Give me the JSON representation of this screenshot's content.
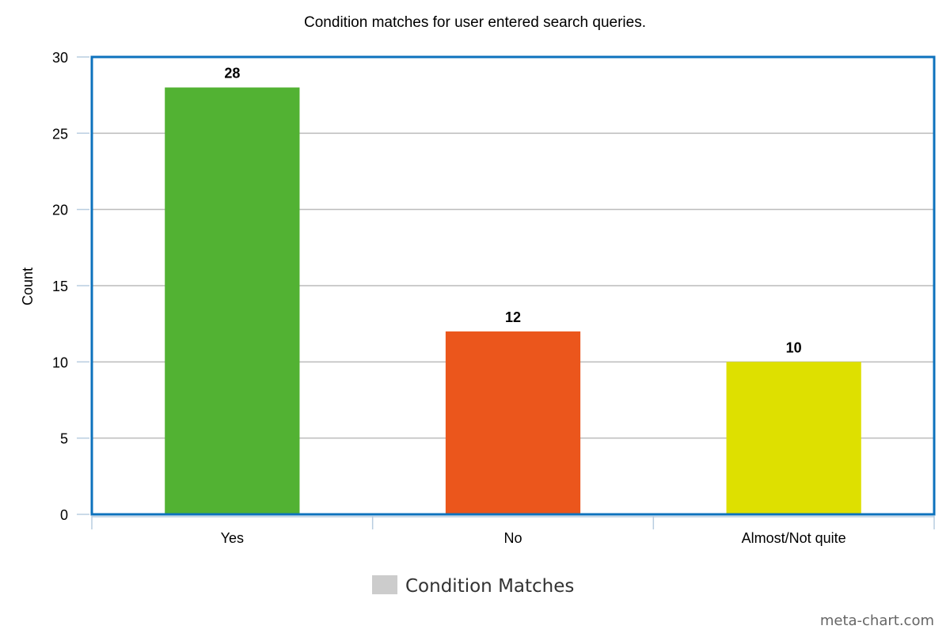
{
  "chart_data": {
    "type": "bar",
    "title": "Condition matches for user entered search queries.",
    "ylabel": "Count",
    "xlabel": "",
    "categories": [
      "Yes",
      "No",
      "Almost/Not quite"
    ],
    "series": [
      {
        "name": "Condition Matches",
        "values": [
          28,
          12,
          10
        ]
      }
    ],
    "bar_colors": [
      "#52b233",
      "#eb561c",
      "#dee000"
    ],
    "ylim": [
      0,
      30
    ],
    "yticks": [
      0,
      5,
      10,
      15,
      20,
      25,
      30
    ],
    "grid": true,
    "legend": {
      "position": "bottom-center",
      "swatch_color": "#cccccc"
    },
    "frame_color": "#0d72bd",
    "grid_color": "#bbbbbb",
    "tick_color": "#b8cde0"
  },
  "watermark": "meta-chart.com"
}
